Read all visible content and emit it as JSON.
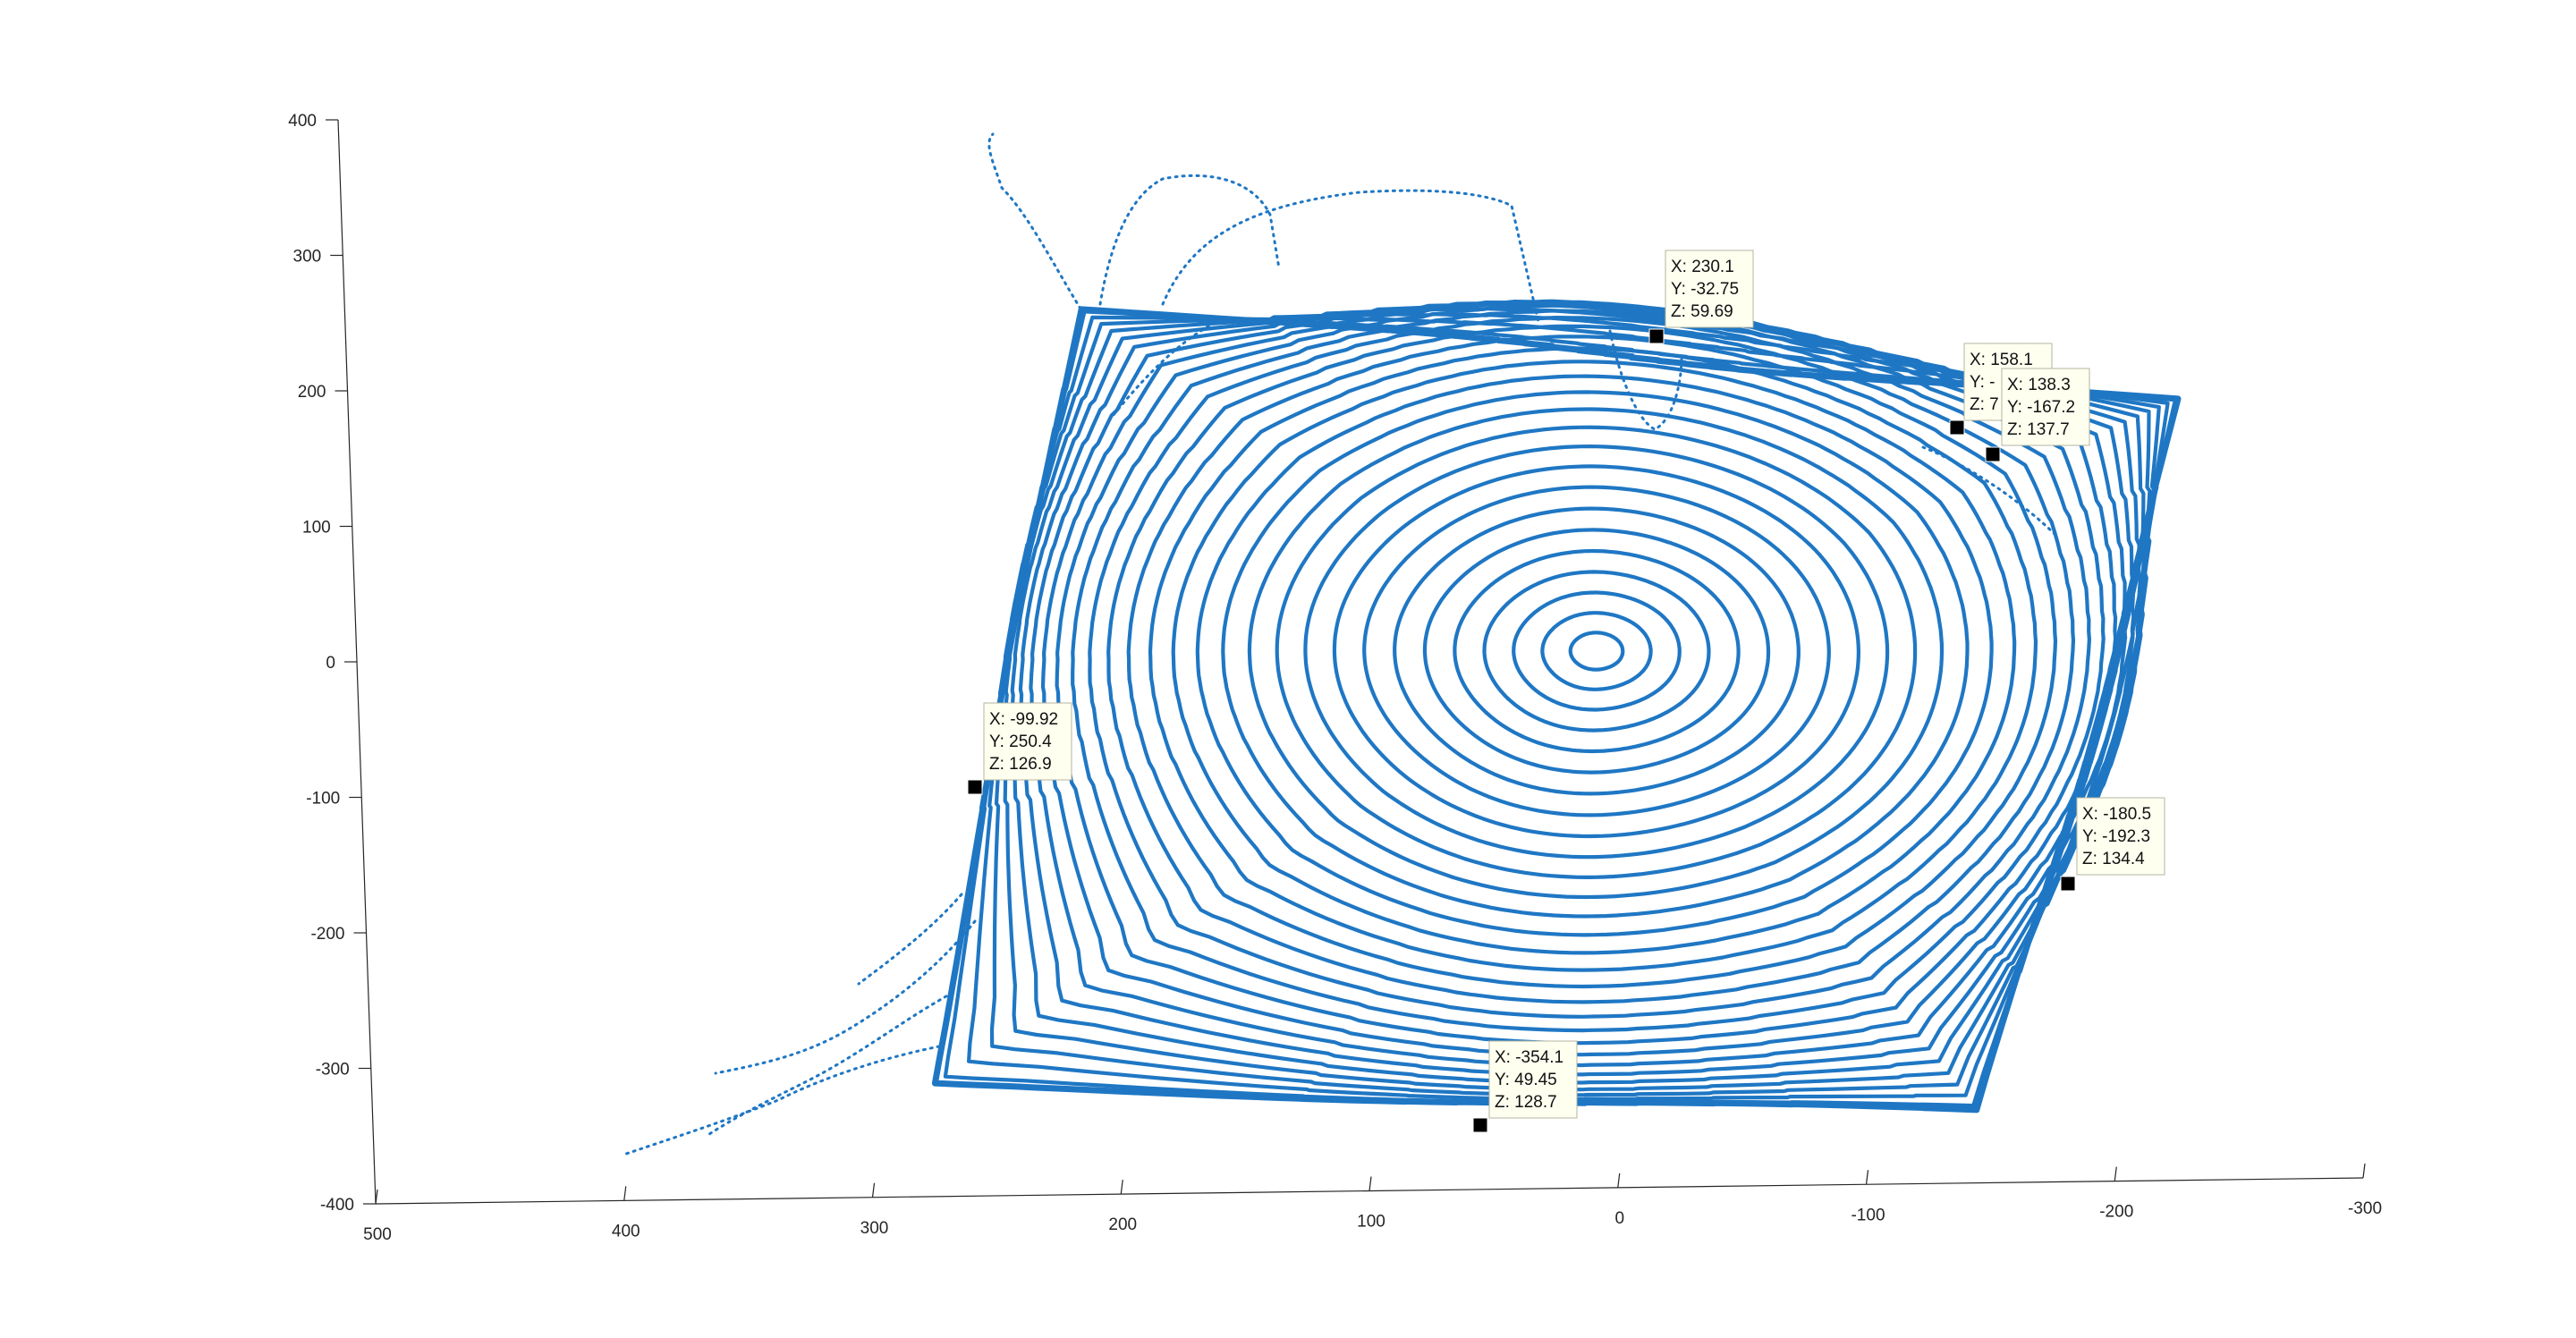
{
  "chart_data": {
    "type": "scatter",
    "projection": "3d",
    "colors": {
      "series": "#1f77c4",
      "axis": "#262626",
      "datatip_bg": "#fffff0"
    },
    "zlim": [
      -400,
      400
    ],
    "zticks": [
      "400",
      "300",
      "200",
      "100",
      "0",
      "-100",
      "-200",
      "-300",
      "-400"
    ],
    "xlim": [
      500,
      -300
    ],
    "xticks": [
      "500",
      "400",
      "300",
      "200",
      "100",
      "0",
      "-100",
      "-200",
      "-300"
    ],
    "grid": false,
    "legend": "none",
    "datatips": [
      {
        "x": "X: 230.1",
        "y": "Y: -32.75",
        "z": "Z: 59.69"
      },
      {
        "x": "X: 158.1",
        "y": "Y: -",
        "z": "Z: 7"
      },
      {
        "x": "X: 138.3",
        "y": "Y: -167.2",
        "z": "Z: 137.7"
      },
      {
        "x": "X: -99.92",
        "y": "Y: 250.4",
        "z": "Z: 126.9"
      },
      {
        "x": "X: -180.5",
        "y": "Y: -192.3",
        "z": "Z: 134.4"
      },
      {
        "x": "X: -354.1",
        "y": "Y: 49.45",
        "z": "Z: 128.7"
      }
    ]
  }
}
